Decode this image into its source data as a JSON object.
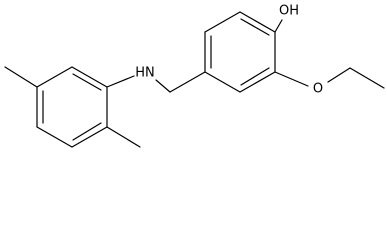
{
  "labels": {
    "amine": "HN",
    "hydroxyl": "OH",
    "ether": "O"
  }
}
